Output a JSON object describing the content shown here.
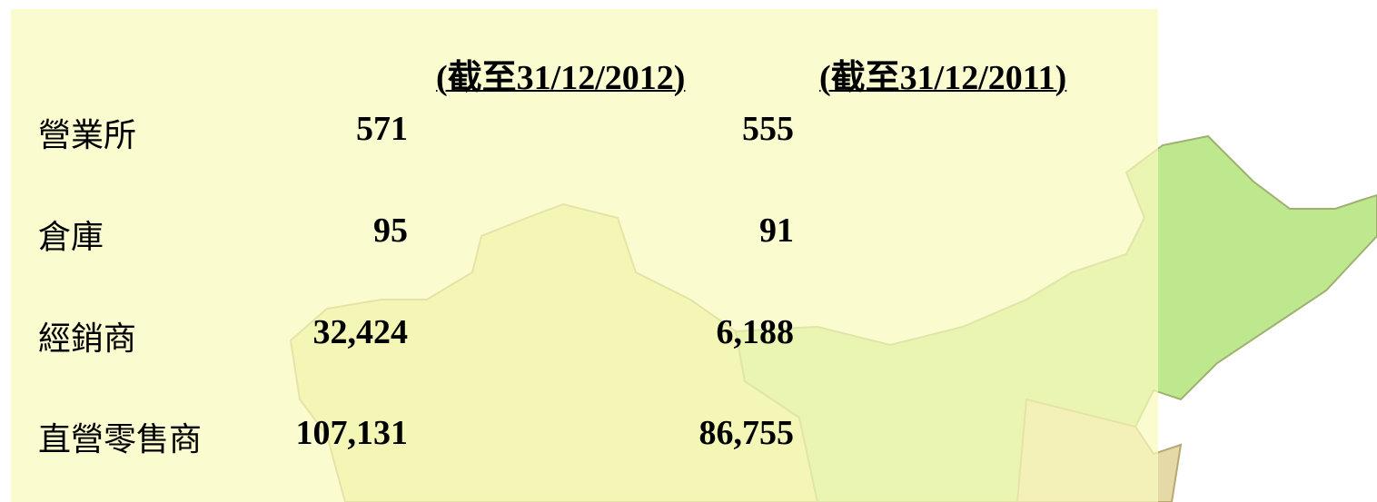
{
  "table": {
    "headers": [
      "(截至31/12/2012)",
      "(截至31/12/2011)"
    ],
    "rows": [
      [
        "營業所",
        "571",
        "555"
      ],
      [
        "倉庫",
        "95",
        "91"
      ],
      [
        "經銷商",
        "32,424",
        "6,188"
      ],
      [
        "直營零售商",
        "107,131",
        "86,755"
      ]
    ]
  }
}
